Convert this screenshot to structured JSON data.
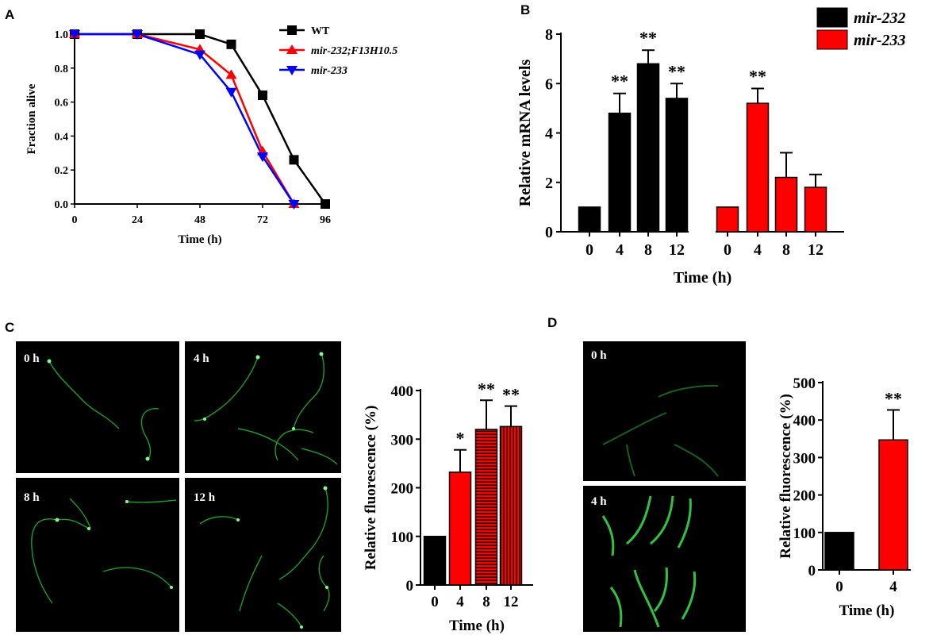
{
  "panels": {
    "a": "A",
    "b": "B",
    "c": "C",
    "d": "D"
  },
  "micro_c": [
    "0 h",
    "4 h",
    "8 h",
    "12 h"
  ],
  "micro_d": [
    "0 h",
    "4 h"
  ],
  "colors": {
    "black": "#000000",
    "red": "#ff0000",
    "blue": "#0000ff",
    "green": "#26d13a"
  },
  "chart_data": [
    {
      "id": "A",
      "type": "line",
      "xlabel": "Time (h)",
      "ylabel": "Fraction alive",
      "xlim": [
        0,
        96
      ],
      "ylim": [
        0,
        1.0
      ],
      "xticks": [
        0,
        24,
        48,
        72,
        96
      ],
      "yticks": [
        "0.0",
        "0.2",
        "0.4",
        "0.6",
        "0.8",
        "1.0"
      ],
      "legend": "top-right",
      "series": [
        {
          "name": "WT",
          "color": "#000000",
          "marker": "square",
          "x": [
            0,
            24,
            48,
            60,
            72,
            84,
            96
          ],
          "y": [
            1.0,
            1.0,
            1.0,
            0.94,
            0.64,
            0.26,
            0.0
          ]
        },
        {
          "name": "mir-232;F13H10.5",
          "color": "#ff0000",
          "marker": "triangle-up",
          "x": [
            0,
            24,
            48,
            60,
            72,
            84
          ],
          "y": [
            1.0,
            1.0,
            0.91,
            0.76,
            0.31,
            0.0
          ]
        },
        {
          "name": "mir-233",
          "color": "#0000ff",
          "marker": "triangle-down",
          "x": [
            0,
            24,
            48,
            60,
            72,
            84
          ],
          "y": [
            1.0,
            1.0,
            0.88,
            0.66,
            0.28,
            0.0
          ]
        }
      ]
    },
    {
      "id": "B",
      "type": "bar",
      "xlabel": "Time (h)",
      "ylabel": "Relative mRNA levels",
      "ylim": [
        0,
        8
      ],
      "yticks": [
        0,
        2,
        4,
        6,
        8
      ],
      "legend": "top-right",
      "series": [
        {
          "name": "mir-232",
          "color": "#000000",
          "categories": [
            "0",
            "4",
            "8",
            "12"
          ],
          "values": [
            1.0,
            4.8,
            6.8,
            5.4
          ],
          "errors": [
            0,
            0.8,
            0.55,
            0.6
          ],
          "sig": [
            "",
            "**",
            "**",
            "**"
          ]
        },
        {
          "name": "mir-233",
          "color": "#ff0000",
          "categories": [
            "0",
            "4",
            "8",
            "12"
          ],
          "values": [
            1.0,
            5.2,
            2.2,
            1.8
          ],
          "errors": [
            0,
            0.6,
            1.0,
            0.52
          ],
          "sig": [
            "",
            "**",
            "",
            ""
          ]
        }
      ]
    },
    {
      "id": "C",
      "type": "bar",
      "xlabel": "Time (h)",
      "ylabel": "Relative fluorescence (%)",
      "ylim": [
        0,
        400
      ],
      "yticks": [
        0,
        100,
        200,
        300,
        400
      ],
      "categories": [
        "0",
        "4",
        "8",
        "12"
      ],
      "values": [
        100,
        232,
        320,
        326
      ],
      "errors": [
        0,
        46,
        60,
        42
      ],
      "sig": [
        "",
        "*",
        "**",
        "**"
      ],
      "fills": [
        "black",
        "red",
        "red-horizontal-stripes",
        "red-vertical-stripes"
      ]
    },
    {
      "id": "D",
      "type": "bar",
      "xlabel": "Time (h)",
      "ylabel": "Relative fluorescence (%)",
      "ylim": [
        0,
        500
      ],
      "yticks": [
        0,
        100,
        200,
        300,
        400,
        500
      ],
      "categories": [
        "0",
        "4"
      ],
      "values": [
        100,
        347
      ],
      "errors": [
        0,
        80
      ],
      "sig": [
        "",
        "**"
      ],
      "fills": [
        "black",
        "red"
      ]
    }
  ]
}
